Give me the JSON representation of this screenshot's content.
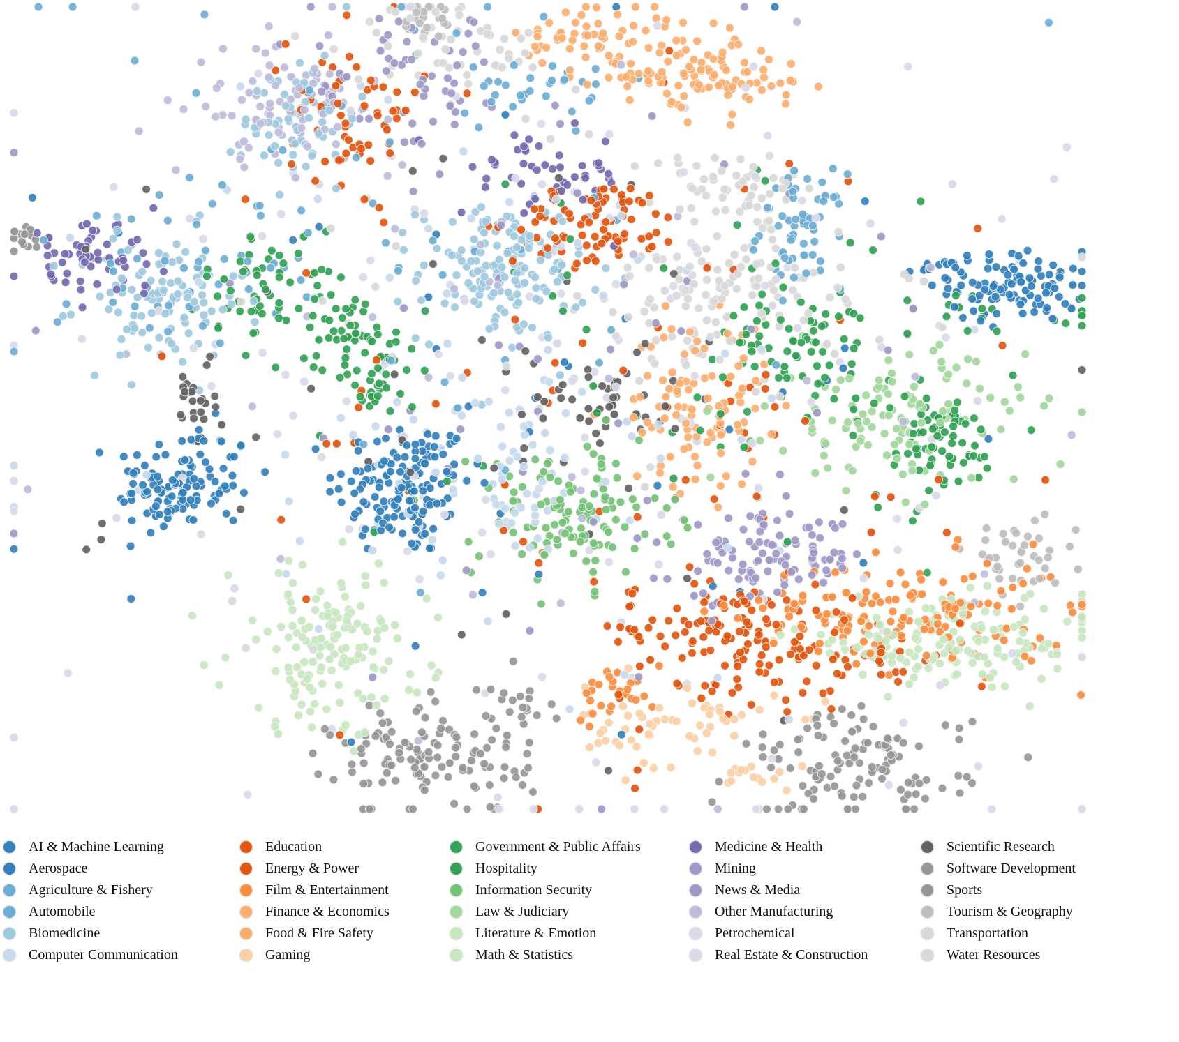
{
  "chart_data": {
    "type": "scatter",
    "title": "",
    "xlabel": "",
    "ylabel": "",
    "axes_visible": false,
    "grid": false,
    "xlim": [
      0,
      102
    ],
    "ylim": [
      0,
      100
    ],
    "legend_position": "bottom",
    "legend_columns": 5,
    "series": [
      {
        "name": "AI & Machine Learning",
        "color": "#3182bd",
        "clusters": [
          {
            "x": 37.3,
            "y": 40,
            "sx": 3.3,
            "sy": 4.3,
            "n": 150
          },
          {
            "x": 16.3,
            "y": 40.9,
            "sx": 3.3,
            "sy": 3.5,
            "n": 80
          },
          {
            "x": 45.3,
            "y": 50.4,
            "sx": 20,
            "sy": 21.7,
            "n": 40
          }
        ]
      },
      {
        "name": "Aerospace",
        "color": "#3182bd",
        "clusters": [
          {
            "x": 96,
            "y": 65.2,
            "sx": 3.3,
            "sy": 2.2,
            "n": 100
          },
          {
            "x": 88,
            "y": 67.4,
            "sx": 1.3,
            "sy": 0.5,
            "n": 15
          },
          {
            "x": 14.7,
            "y": 39.1,
            "sx": 2,
            "sy": 2,
            "n": 40
          }
        ]
      },
      {
        "name": "Agriculture & Fishery",
        "color": "#6baed6",
        "clusters": [
          {
            "x": 75.3,
            "y": 72.2,
            "sx": 2,
            "sy": 3.5,
            "n": 60
          },
          {
            "x": 38.7,
            "y": 74.8,
            "sx": 20,
            "sy": 17.4,
            "n": 60
          }
        ]
      },
      {
        "name": "Automobile",
        "color": "#6baed6",
        "clusters": [
          {
            "x": 49.3,
            "y": 89.6,
            "sx": 3,
            "sy": 1.5,
            "n": 25
          },
          {
            "x": 18.7,
            "y": 67.8,
            "sx": 6,
            "sy": 5,
            "n": 40
          }
        ]
      },
      {
        "name": "Biomedicine",
        "color": "#9ecae1",
        "clusters": [
          {
            "x": 46.7,
            "y": 67,
            "sx": 4,
            "sy": 4.3,
            "n": 150
          },
          {
            "x": 14,
            "y": 63.5,
            "sx": 4,
            "sy": 4.3,
            "n": 100
          },
          {
            "x": 27.3,
            "y": 86.1,
            "sx": 2.7,
            "sy": 4.3,
            "n": 60
          }
        ]
      },
      {
        "name": "Computer Communication",
        "color": "#c6dbef",
        "clusters": [
          {
            "x": 47.3,
            "y": 41.7,
            "sx": 4,
            "sy": 5.2,
            "n": 60
          },
          {
            "x": 45.3,
            "y": 48.7,
            "sx": 20,
            "sy": 20,
            "n": 80
          }
        ]
      },
      {
        "name": "Education",
        "color": "#e6550d",
        "clusters": [
          {
            "x": 56,
            "y": 73,
            "sx": 4,
            "sy": 2.6,
            "n": 80
          },
          {
            "x": 67.3,
            "y": 22.6,
            "sx": 4.7,
            "sy": 3.5,
            "n": 100
          },
          {
            "x": 32.7,
            "y": 87,
            "sx": 3.3,
            "sy": 5.2,
            "n": 60
          }
        ]
      },
      {
        "name": "Energy & Power",
        "color": "#e6550d",
        "clusters": [
          {
            "x": 78.7,
            "y": 19.1,
            "sx": 6,
            "sy": 3,
            "n": 60
          },
          {
            "x": 58.7,
            "y": 44.3,
            "sx": 20,
            "sy": 20,
            "n": 80
          }
        ]
      },
      {
        "name": "Film & Entertainment",
        "color": "#fd8d3c",
        "clusters": [
          {
            "x": 85.3,
            "y": 24.3,
            "sx": 8,
            "sy": 3.5,
            "n": 150
          },
          {
            "x": 57.3,
            "y": 14.8,
            "sx": 2,
            "sy": 1.7,
            "n": 25
          }
        ]
      },
      {
        "name": "Finance & Economics",
        "color": "#fdae6b",
        "clusters": [
          {
            "x": 65.3,
            "y": 50.4,
            "sx": 3.3,
            "sy": 5.2,
            "n": 100
          },
          {
            "x": 60.7,
            "y": 93.9,
            "sx": 5.3,
            "sy": 3.5,
            "n": 80
          }
        ]
      },
      {
        "name": "Food & Fire Safety",
        "color": "#fdae6b",
        "clusters": [
          {
            "x": 68,
            "y": 91.3,
            "sx": 4,
            "sy": 2,
            "n": 50
          },
          {
            "x": 53.3,
            "y": 95.7,
            "sx": 2.7,
            "sy": 1.7,
            "n": 30
          }
        ]
      },
      {
        "name": "Gaming",
        "color": "#fdd0a2",
        "clusters": [
          {
            "x": 64,
            "y": 10.4,
            "sx": 4.7,
            "sy": 2.6,
            "n": 60
          },
          {
            "x": 71.3,
            "y": 4.3,
            "sx": 2,
            "sy": 1,
            "n": 15
          }
        ]
      },
      {
        "name": "Government & Public Affairs",
        "color": "#31a354",
        "clusters": [
          {
            "x": 24.7,
            "y": 65.2,
            "sx": 3.3,
            "sy": 3.5,
            "n": 60
          },
          {
            "x": 32.7,
            "y": 59.1,
            "sx": 2.7,
            "sy": 2.6,
            "n": 50
          },
          {
            "x": 88,
            "y": 45.2,
            "sx": 3.3,
            "sy": 3.5,
            "n": 70
          },
          {
            "x": 76,
            "y": 57.4,
            "sx": 4,
            "sy": 3.5,
            "n": 60
          },
          {
            "x": 34.7,
            "y": 52.2,
            "sx": 1.3,
            "sy": 1.3,
            "n": 20
          }
        ]
      },
      {
        "name": "Hospitality",
        "color": "#31a354",
        "clusters": [
          {
            "x": 88.7,
            "y": 61.7,
            "sx": 10,
            "sy": 1.7,
            "n": 30
          },
          {
            "x": 65.3,
            "y": 57.4,
            "sx": 20,
            "sy": 15,
            "n": 50
          }
        ]
      },
      {
        "name": "Information Security",
        "color": "#74c476",
        "clusters": [
          {
            "x": 53.3,
            "y": 36.5,
            "sx": 4.7,
            "sy": 4.3,
            "n": 120
          }
        ]
      },
      {
        "name": "Law & Judiciary",
        "color": "#a1d99b",
        "clusters": [
          {
            "x": 84.7,
            "y": 48.7,
            "sx": 6,
            "sy": 4.3,
            "n": 120
          }
        ]
      },
      {
        "name": "Literature & Emotion",
        "color": "#c7e9c0",
        "clusters": [
          {
            "x": 30,
            "y": 20,
            "sx": 4.7,
            "sy": 5.2,
            "n": 150
          }
        ]
      },
      {
        "name": "Math & Statistics",
        "color": "#c7e9c0",
        "clusters": [
          {
            "x": 90,
            "y": 20.9,
            "sx": 8,
            "sy": 2.6,
            "n": 150
          }
        ]
      },
      {
        "name": "Medicine & Health",
        "color": "#756bb1",
        "clusters": [
          {
            "x": 7.3,
            "y": 68.7,
            "sx": 3.3,
            "sy": 2.2,
            "n": 60
          },
          {
            "x": 50.7,
            "y": 79.1,
            "sx": 4,
            "sy": 2.6,
            "n": 50
          }
        ]
      },
      {
        "name": "Mining",
        "color": "#9e9ac8",
        "clusters": [
          {
            "x": 72,
            "y": 31.3,
            "sx": 4.7,
            "sy": 2.6,
            "n": 100
          }
        ]
      },
      {
        "name": "News & Media",
        "color": "#9e9ac8",
        "clusters": [
          {
            "x": 38.7,
            "y": 90.4,
            "sx": 5.3,
            "sy": 4.3,
            "n": 60
          },
          {
            "x": 52,
            "y": 57,
            "sx": 20,
            "sy": 20,
            "n": 50
          }
        ]
      },
      {
        "name": "Other Manufacturing",
        "color": "#bcbddc",
        "clusters": [
          {
            "x": 25.3,
            "y": 87.8,
            "sx": 4,
            "sy": 3.5,
            "n": 80
          },
          {
            "x": 50,
            "y": 55,
            "sx": 22,
            "sy": 22,
            "n": 40
          }
        ]
      },
      {
        "name": "Petrochemical",
        "color": "#dadaeb",
        "clusters": [
          {
            "x": 45.3,
            "y": 57.4,
            "sx": 25,
            "sy": 25,
            "n": 80
          }
        ]
      },
      {
        "name": "Real Estate & Construction",
        "color": "#dadaeb",
        "clusters": [
          {
            "x": 58.7,
            "y": 48.7,
            "sx": 25,
            "sy": 25,
            "n": 80
          }
        ]
      },
      {
        "name": "Scientific Research",
        "color": "#636363",
        "clusters": [
          {
            "x": 56,
            "y": 51.3,
            "sx": 4,
            "sy": 3.5,
            "n": 40
          },
          {
            "x": 17.3,
            "y": 51.3,
            "sx": 1,
            "sy": 3,
            "n": 25
          },
          {
            "x": 50,
            "y": 50,
            "sx": 20,
            "sy": 20,
            "n": 40
          }
        ]
      },
      {
        "name": "Software Development",
        "color": "#969696",
        "clusters": [
          {
            "x": 40,
            "y": 6.1,
            "sx": 4.7,
            "sy": 3.5,
            "n": 120
          },
          {
            "x": 48,
            "y": 13,
            "sx": 2,
            "sy": 2,
            "n": 20
          }
        ]
      },
      {
        "name": "Sports",
        "color": "#969696",
        "clusters": [
          {
            "x": 80.7,
            "y": 5.2,
            "sx": 5.3,
            "sy": 3.5,
            "n": 120
          },
          {
            "x": 1.3,
            "y": 71.3,
            "sx": 1.3,
            "sy": 0.9,
            "n": 15
          }
        ]
      },
      {
        "name": "Tourism & Geography",
        "color": "#bdbdbd",
        "clusters": [
          {
            "x": 96,
            "y": 31.3,
            "sx": 2.7,
            "sy": 2.6,
            "n": 40
          },
          {
            "x": 39.3,
            "y": 98.3,
            "sx": 1.3,
            "sy": 1.3,
            "n": 20
          }
        ]
      },
      {
        "name": "Transportation",
        "color": "#d9d9d9",
        "clusters": [
          {
            "x": 67.3,
            "y": 64.3,
            "sx": 6,
            "sy": 4.3,
            "n": 120
          },
          {
            "x": 41.3,
            "y": 95.7,
            "sx": 4.7,
            "sy": 2.6,
            "n": 50
          }
        ]
      },
      {
        "name": "Water Resources",
        "color": "#d9d9d9",
        "clusters": [
          {
            "x": 69.3,
            "y": 77.4,
            "sx": 3.3,
            "sy": 2.6,
            "n": 50
          },
          {
            "x": 55,
            "y": 60,
            "sx": 20,
            "sy": 18,
            "n": 40
          }
        ]
      }
    ]
  }
}
